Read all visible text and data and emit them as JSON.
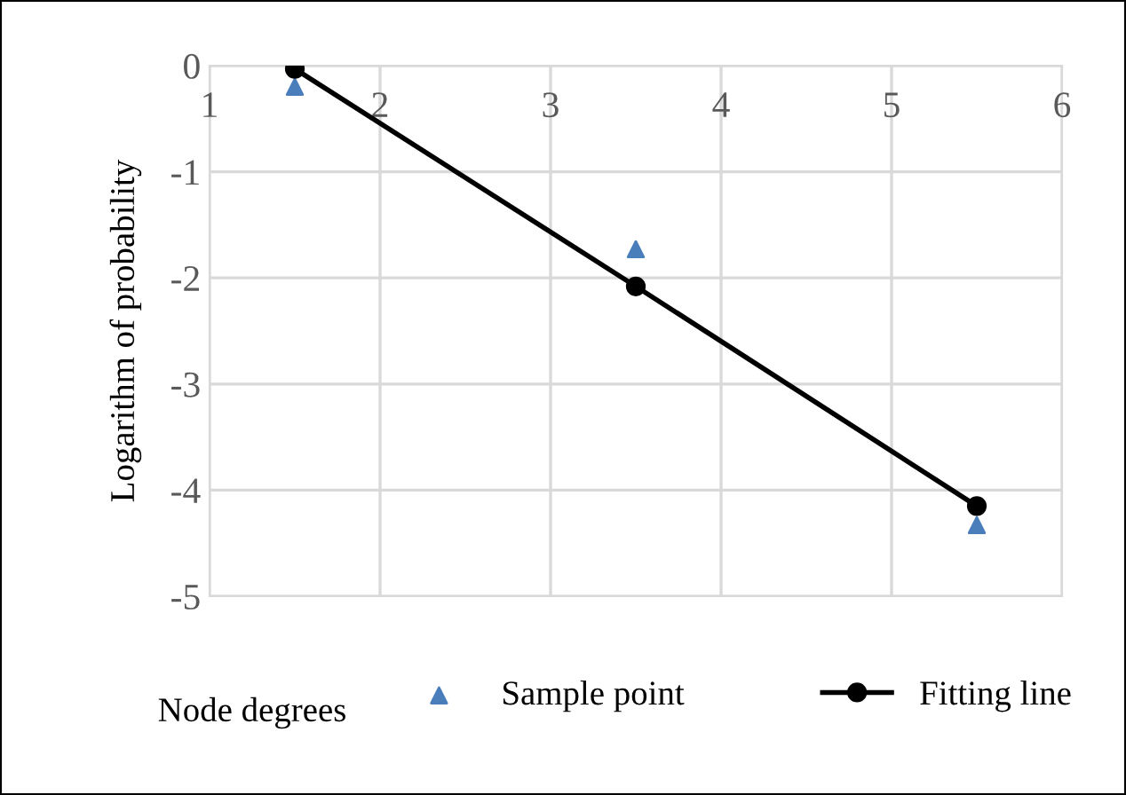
{
  "chart_data": {
    "type": "scatter",
    "xlabel": "Node degrees",
    "ylabel": "Logarithm of probability",
    "xlim": [
      1,
      6
    ],
    "xticks": [
      1,
      2,
      3,
      4,
      5,
      6
    ],
    "ylim": [
      -5,
      0
    ],
    "yticks": [
      -5,
      -4,
      -3,
      -2,
      -1,
      0
    ],
    "grid": true,
    "legend": "bottom",
    "series": [
      {
        "name": "Sample point",
        "marker": "triangle",
        "color": "#4a7ebb",
        "x": [
          1.5,
          3.5,
          5.5
        ],
        "values": [
          -0.2,
          -1.73,
          -4.33
        ]
      },
      {
        "name": "Fitting line",
        "type": "line",
        "marker": "circle",
        "color": "#000000",
        "x": [
          1.5,
          3.5,
          5.5
        ],
        "values": [
          -0.03,
          -2.08,
          -4.15
        ]
      }
    ]
  }
}
